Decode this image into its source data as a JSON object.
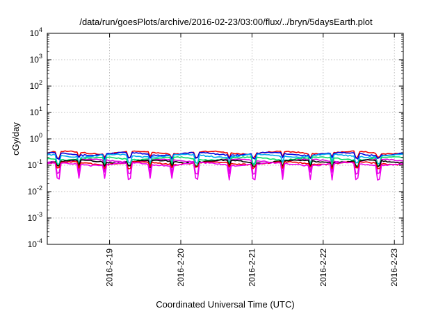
{
  "chart_data": {
    "type": "line",
    "title": "/data/run/goesPlots/archive/2016-02-23/03:00/flux/../bryn/5daysEarth.plot",
    "xlabel": "Coordinated Universal Time (UTC)",
    "ylabel": "cGy/day",
    "yscale": "log",
    "ylim": [
      0.0001,
      10000
    ],
    "xlim": [
      "2016-02-18 03:00",
      "2016-02-23 03:00"
    ],
    "grid": true,
    "y_ticks": [
      {
        "value": 0.0001,
        "base": "10",
        "exp": "-4"
      },
      {
        "value": 0.001,
        "base": "10",
        "exp": "-3"
      },
      {
        "value": 0.01,
        "base": "10",
        "exp": "-2"
      },
      {
        "value": 0.1,
        "base": "10",
        "exp": "-1"
      },
      {
        "value": 1,
        "base": "10",
        "exp": "0"
      },
      {
        "value": 10,
        "base": "10",
        "exp": "1"
      },
      {
        "value": 100,
        "base": "10",
        "exp": "2"
      },
      {
        "value": 1000,
        "base": "10",
        "exp": "3"
      },
      {
        "value": 10000,
        "base": "10",
        "exp": "4"
      }
    ],
    "x_ticks": [
      {
        "value": "2016-02-19",
        "label": "2016-2-19"
      },
      {
        "value": "2016-02-20",
        "label": "2016-2-20"
      },
      {
        "value": "2016-02-21",
        "label": "2016-2-21"
      },
      {
        "value": "2016-02-22",
        "label": "2016-2-22"
      },
      {
        "value": "2016-02-23",
        "label": "2016-2-23"
      }
    ],
    "series": [
      {
        "color": "#ee0000",
        "level": 0.3,
        "dip_to": 0.2
      },
      {
        "color": "#0000dd",
        "level": 0.27,
        "dip_to": 0.18
      },
      {
        "color": "#00aaee",
        "level": 0.23,
        "dip_to": 0.12
      },
      {
        "color": "#00dd66",
        "level": 0.18,
        "dip_to": 0.1
      },
      {
        "color": "#dd00dd",
        "level": 0.15,
        "dip_to": 0.05
      },
      {
        "color": "#000000",
        "level": 0.14,
        "dip_to": 0.09
      },
      {
        "color": "#ee0000",
        "level": 0.12,
        "dip_to": 0.08
      },
      {
        "color": "#ee00ee",
        "level": 0.11,
        "dip_to": 0.03
      }
    ]
  }
}
